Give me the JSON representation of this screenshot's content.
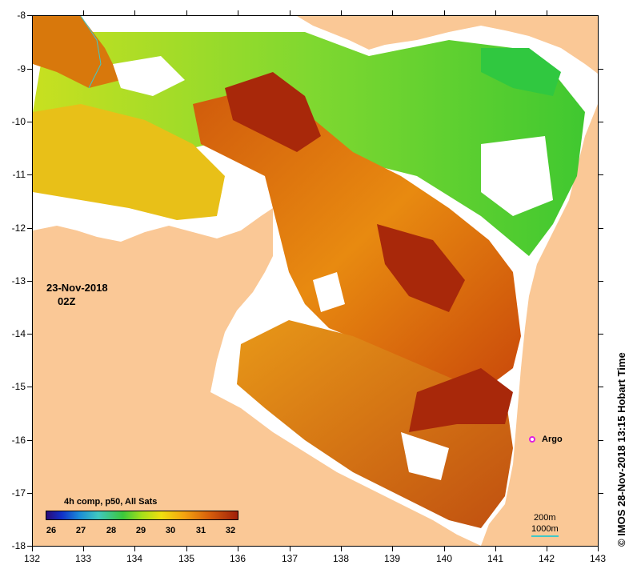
{
  "map": {
    "x_ticks": [
      "132",
      "133",
      "134",
      "135",
      "136",
      "137",
      "138",
      "139",
      "140",
      "141",
      "142",
      "143"
    ],
    "y_ticks": [
      "-8",
      "-9",
      "-10",
      "-11",
      "-12",
      "-13",
      "-14",
      "-15",
      "-16",
      "-17",
      "-18"
    ],
    "date": "23-Nov-2018",
    "time": "02Z",
    "credit": "© IMOS 28-Nov-2018 13:15 Hobart Time",
    "marker_label": "Argo",
    "colors": {
      "land": "#fac896",
      "no_data": "#ffffff",
      "marker": "#e020e0",
      "contour": "#40c8c8"
    }
  },
  "legend": {
    "title": "4h comp, p50, All Sats",
    "scale_labels": [
      "26",
      "27",
      "28",
      "29",
      "30",
      "31",
      "32"
    ],
    "contours": {
      "shallow": "200m",
      "deep": "1000m"
    }
  }
}
